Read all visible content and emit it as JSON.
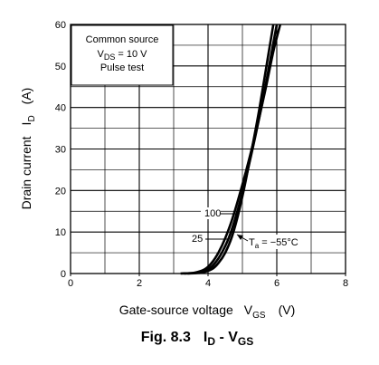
{
  "chart_data": {
    "type": "line",
    "title": "",
    "caption": {
      "prefix": "Fig. 8.3",
      "i": "I",
      "i_sub": "D",
      "dash": " - V",
      "v_sub": "GS"
    },
    "xlabel": {
      "main": "Gate-source voltage",
      "symbol": "V",
      "symbol_sub": "GS",
      "unit": "(V)"
    },
    "ylabel": {
      "main": "Drain current",
      "symbol": "I",
      "symbol_sub": "D",
      "unit": "(A)"
    },
    "xlim": [
      0,
      8
    ],
    "ylim": [
      0,
      60
    ],
    "x_major_ticks": [
      0,
      2,
      4,
      6,
      8
    ],
    "y_major_ticks": [
      0,
      10,
      20,
      30,
      40,
      50,
      60
    ],
    "x_tick_labels": [
      "0",
      "2",
      "4",
      "6",
      "8"
    ],
    "y_tick_labels": [
      "0",
      "10",
      "20",
      "30",
      "40",
      "50",
      "60"
    ],
    "grid": true,
    "legend_box": {
      "line1": "Common source",
      "line2_prefix": "V",
      "line2_sub": "DS",
      "line2_suffix": " = 10 V",
      "line3": "Pulse test"
    },
    "series": [
      {
        "name": "100",
        "x": [
          3.2,
          3.6,
          3.9,
          4.1,
          4.3,
          4.5,
          4.7,
          4.9,
          5.1,
          5.3,
          5.5,
          5.7,
          5.9,
          6.1
        ],
        "y": [
          0,
          0.2,
          1,
          2.5,
          5,
          8.5,
          13,
          18.5,
          24.5,
          31,
          38,
          45.5,
          53.5,
          60
        ]
      },
      {
        "name": "25",
        "x": [
          3.3,
          3.7,
          4.0,
          4.2,
          4.4,
          4.6,
          4.8,
          5.0,
          5.2,
          5.4,
          5.6,
          5.8,
          6.0
        ],
        "y": [
          0,
          0.2,
          1,
          2.5,
          5,
          8.5,
          13.5,
          19.5,
          26.5,
          34,
          42,
          51,
          60
        ]
      },
      {
        "name": "T_a = -55°C",
        "x": [
          3.4,
          3.8,
          4.1,
          4.3,
          4.5,
          4.7,
          4.9,
          5.1,
          5.3,
          5.5,
          5.7,
          5.9
        ],
        "y": [
          0,
          0.2,
          1,
          2.5,
          5,
          9,
          15,
          22.5,
          31,
          40,
          50,
          60
        ]
      }
    ],
    "annotations": {
      "label_100": "100",
      "label_25": "25",
      "label_ta_prefix": "T",
      "label_ta_sub": "a",
      "label_ta_suffix": " = −55°C"
    }
  }
}
